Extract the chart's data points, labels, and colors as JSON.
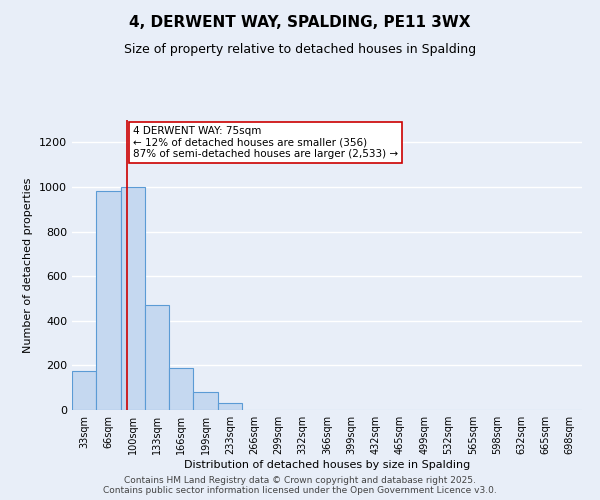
{
  "title": "4, DERWENT WAY, SPALDING, PE11 3WX",
  "subtitle": "Size of property relative to detached houses in Spalding",
  "xlabel": "Distribution of detached houses by size in Spalding",
  "ylabel": "Number of detached properties",
  "categories": [
    "33sqm",
    "66sqm",
    "100sqm",
    "133sqm",
    "166sqm",
    "199sqm",
    "233sqm",
    "266sqm",
    "299sqm",
    "332sqm",
    "366sqm",
    "399sqm",
    "432sqm",
    "465sqm",
    "499sqm",
    "532sqm",
    "565sqm",
    "598sqm",
    "632sqm",
    "665sqm",
    "698sqm"
  ],
  "bar_values": [
    175,
    980,
    1000,
    470,
    190,
    80,
    30,
    0,
    0,
    0,
    0,
    0,
    0,
    0,
    0,
    0,
    0,
    0,
    0,
    0,
    0
  ],
  "bar_color": "#c5d8f0",
  "bar_edge_color": "#5b9bd5",
  "vline_pos": 1.75,
  "vline_color": "#cc0000",
  "annotation_text": "4 DERWENT WAY: 75sqm\n← 12% of detached houses are smaller (356)\n87% of semi-detached houses are larger (2,533) →",
  "annotation_box_color": "#cc0000",
  "annotation_fill": "#ffffff",
  "ylim": [
    0,
    1300
  ],
  "yticks": [
    0,
    200,
    400,
    600,
    800,
    1000,
    1200
  ],
  "bg_color": "#e8eef8",
  "grid_color": "#ffffff",
  "title_fontsize": 11,
  "subtitle_fontsize": 9,
  "axis_fontsize": 7,
  "ylabel_fontsize": 8,
  "xlabel_fontsize": 8,
  "footer_fontsize": 6.5,
  "footer_line1": "Contains HM Land Registry data © Crown copyright and database right 2025.",
  "footer_line2": "Contains public sector information licensed under the Open Government Licence v3.0."
}
